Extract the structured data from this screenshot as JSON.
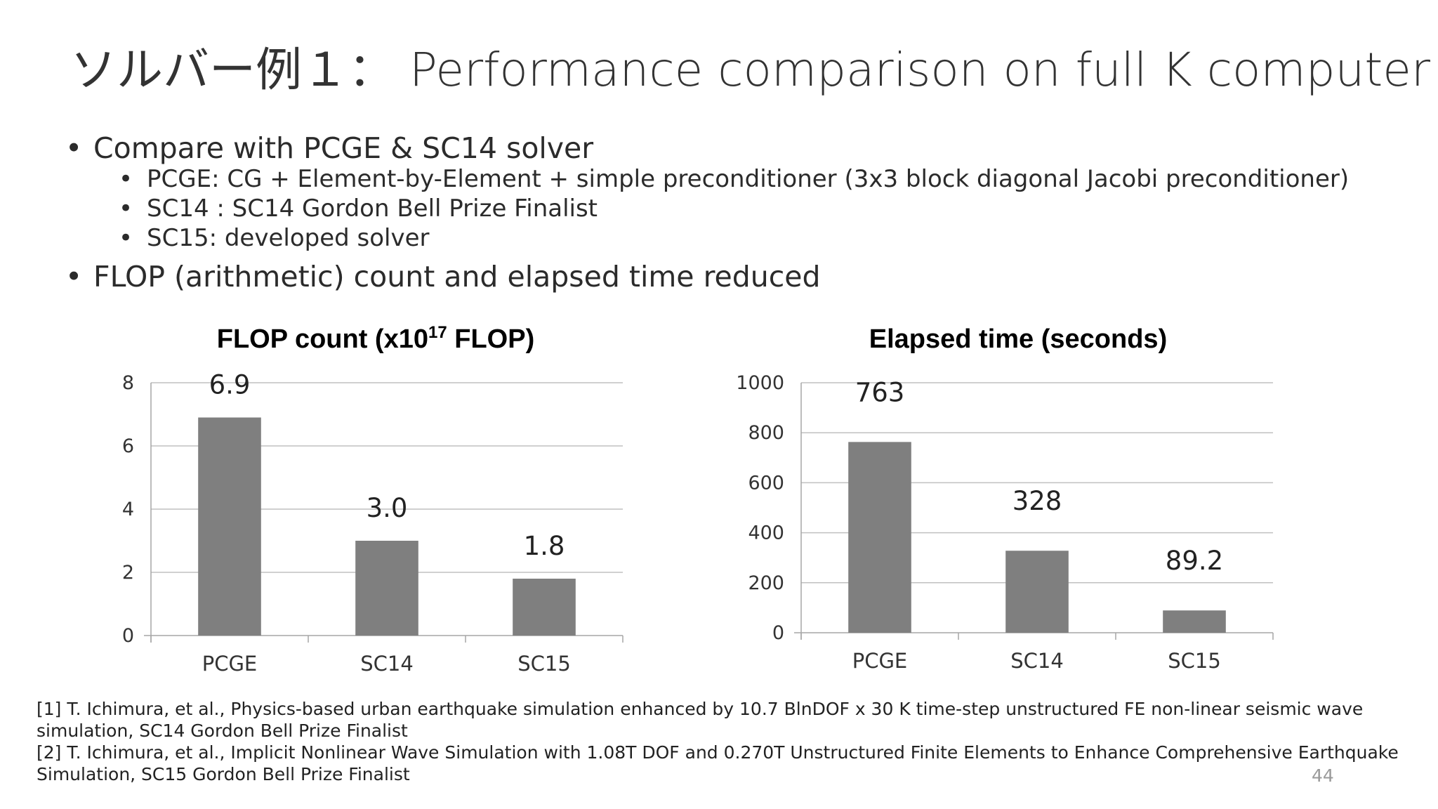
{
  "slide": {
    "title": "ソルバー例１： Performance comparison on full K computer",
    "bullets": [
      {
        "level": 1,
        "text": "Compare with PCGE & SC14 solver"
      },
      {
        "level": 2,
        "text": "PCGE: CG + Element-by-Element + simple preconditioner (3x3 block diagonal Jacobi preconditioner)"
      },
      {
        "level": 2,
        "text": "SC14 : SC14 Gordon Bell Prize Finalist"
      },
      {
        "level": 2,
        "text": "SC15: developed solver"
      },
      {
        "level": 1,
        "text": "FLOP (arithmetic) count and elapsed time reduced"
      }
    ],
    "bullet_glyph": "•",
    "references": [
      "[1] T. Ichimura, et al., Physics-based urban earthquake simulation enhanced by 10.7 BlnDOF x 30 K time-step unstructured FE non-linear seismic wave simulation, SC14 Gordon Bell Prize Finalist",
      "[2] T. Ichimura, et al., Implicit Nonlinear Wave Simulation with 1.08T DOF and 0.270T Unstructured Finite Elements to Enhance Comprehensive Earthquake Simulation, SC15 Gordon Bell Prize Finalist"
    ],
    "page_number": "44"
  },
  "colors": {
    "bar": "#7f7f7f",
    "gridline": "#c0c0c0",
    "axis": "#a6a6a6",
    "title_text": "#333333"
  },
  "chart_data": [
    {
      "type": "bar",
      "title": "FLOP count (x10",
      "title_superscript": "17",
      "title_suffix": " FLOP)",
      "xlabel": "",
      "ylabel": "",
      "categories": [
        "PCGE",
        "SC14",
        "SC15"
      ],
      "values": [
        6.9,
        3.0,
        1.8
      ],
      "data_labels": [
        "6.9",
        "3.0",
        "1.8"
      ],
      "ylim": [
        0,
        8
      ],
      "yticks": [
        0,
        2,
        4,
        6,
        8
      ],
      "grid": true,
      "legend": "none"
    },
    {
      "type": "bar",
      "title": "Elapsed time (seconds)",
      "xlabel": "",
      "ylabel": "",
      "categories": [
        "PCGE",
        "SC14",
        "SC15"
      ],
      "values": [
        763,
        328,
        89.2
      ],
      "data_labels": [
        "763",
        "328",
        "89.2"
      ],
      "ylim": [
        0,
        1000
      ],
      "yticks": [
        0,
        200,
        400,
        600,
        800,
        1000
      ],
      "grid": true,
      "legend": "none"
    }
  ]
}
